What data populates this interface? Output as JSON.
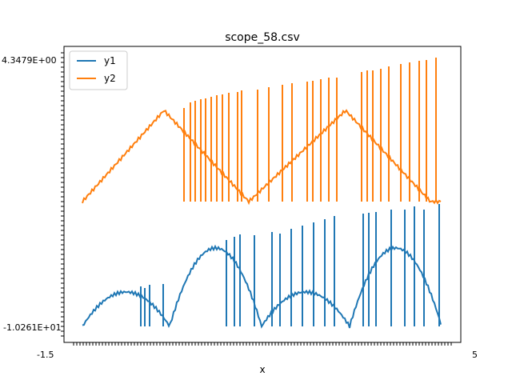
{
  "chart_data": {
    "type": "line",
    "title": "scope_58.csv",
    "xlabel": "x",
    "ylabel": "",
    "legend": "top-left",
    "grid": false,
    "x_tick_label_left": "-1.5",
    "x_tick_label_right": "5",
    "y_tick_label_top": "4.3479E+00",
    "y_tick_label_bottom": "-1.0261E+01",
    "series": [
      {
        "name": "y1",
        "color": "#1f77b4"
      },
      {
        "name": "y2",
        "color": "#ff7f0e"
      }
    ]
  }
}
